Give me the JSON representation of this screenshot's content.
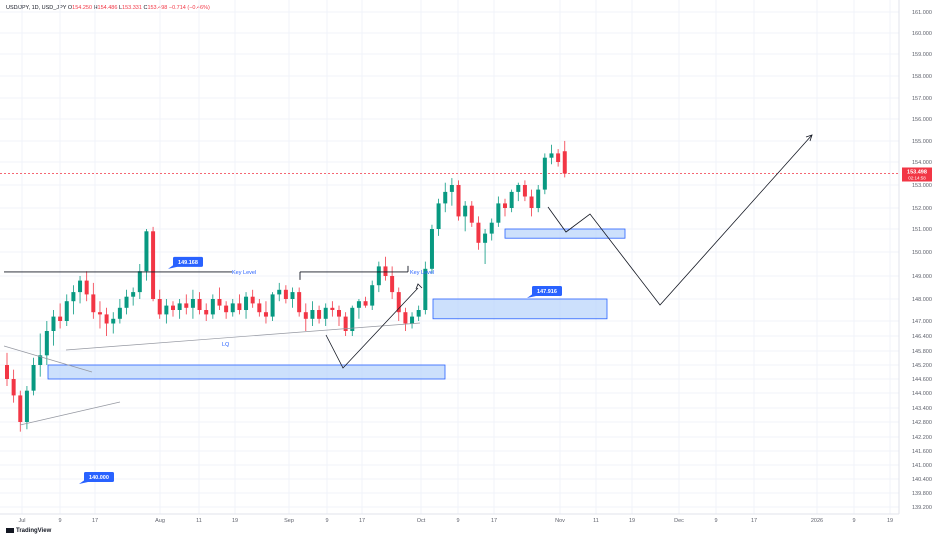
{
  "header": {
    "symbol": "USD/JPY, 1D, USD_JPY",
    "open_label": "O",
    "open": "154.250",
    "high_label": "H",
    "high": "154.486",
    "low_label": "L",
    "low": "153.331",
    "close_label": "C",
    "close": "153.498",
    "change": "−0.714 (−0.46%)"
  },
  "watermark": "TradingView",
  "colors": {
    "up": "#089981",
    "down": "#f23645",
    "label_blue": "#2962ff",
    "zone_fill": "#bbd6fb",
    "zone_stroke": "#2962ff"
  },
  "chart_data": {
    "type": "candlestick",
    "title": "USD/JPY, 1D, USD_JPY",
    "ylim": [
      139.2,
      161.3
    ],
    "y_ticks": [
      "161.000",
      "160.000",
      "159.000",
      "158.000",
      "157.000",
      "156.000",
      "155.000",
      "154.000",
      "153.000",
      "152.000",
      "151.000",
      "150.000",
      "149.000",
      "148.000",
      "147.000",
      "146.400",
      "145.800",
      "145.200",
      "144.600",
      "144.000",
      "143.400",
      "142.800",
      "142.200",
      "141.600",
      "141.000",
      "140.400",
      "139.800",
      "139.200"
    ],
    "x_ticks": [
      "Jul",
      "9",
      "17",
      "Aug",
      "11",
      "19",
      "Sep",
      "9",
      "17",
      "Oct",
      "9",
      "17",
      "Nov",
      "11",
      "19",
      "Dec",
      "9",
      "17",
      "2026",
      "9",
      "19"
    ],
    "last_price": "153.498",
    "countdown": "02:14:58",
    "candles": [
      [
        145.2,
        145.7,
        144.3,
        144.6
      ],
      [
        144.6,
        145.0,
        143.6,
        143.9
      ],
      [
        143.9,
        144.1,
        142.4,
        142.8
      ],
      [
        142.8,
        144.3,
        142.5,
        144.1
      ],
      [
        144.1,
        145.5,
        143.9,
        145.2
      ],
      [
        145.2,
        146.5,
        144.7,
        145.6
      ],
      [
        145.6,
        147.0,
        145.2,
        146.6
      ],
      [
        146.6,
        147.5,
        146.0,
        147.2
      ],
      [
        147.2,
        147.8,
        146.7,
        147.0
      ],
      [
        147.0,
        148.2,
        146.8,
        147.9
      ],
      [
        147.9,
        148.6,
        147.3,
        148.3
      ],
      [
        148.3,
        149.0,
        147.8,
        148.8
      ],
      [
        148.8,
        149.2,
        147.9,
        148.2
      ],
      [
        148.2,
        148.7,
        147.1,
        147.4
      ],
      [
        147.4,
        147.9,
        146.7,
        147.3
      ],
      [
        147.3,
        147.6,
        146.4,
        146.9
      ],
      [
        146.9,
        147.4,
        146.5,
        147.1
      ],
      [
        147.1,
        148.0,
        146.9,
        147.6
      ],
      [
        147.6,
        148.4,
        147.3,
        148.1
      ],
      [
        148.1,
        148.5,
        147.7,
        148.3
      ],
      [
        148.3,
        149.5,
        148.0,
        149.2
      ],
      [
        149.2,
        151.0,
        148.8,
        150.9
      ],
      [
        150.9,
        151.1,
        147.9,
        148.0
      ],
      [
        148.0,
        148.4,
        147.1,
        147.3
      ],
      [
        147.3,
        148.0,
        146.9,
        147.7
      ],
      [
        147.7,
        147.9,
        147.2,
        147.5
      ],
      [
        147.5,
        148.0,
        147.1,
        147.8
      ],
      [
        147.8,
        148.2,
        147.3,
        147.6
      ],
      [
        147.6,
        148.4,
        147.1,
        148.0
      ],
      [
        148.0,
        148.3,
        147.3,
        147.5
      ],
      [
        147.5,
        147.8,
        147.0,
        147.3
      ],
      [
        147.3,
        148.2,
        147.1,
        148.0
      ],
      [
        148.0,
        148.5,
        147.5,
        147.7
      ],
      [
        147.7,
        147.9,
        147.1,
        147.4
      ],
      [
        147.4,
        148.0,
        147.2,
        147.8
      ],
      [
        147.8,
        148.2,
        147.3,
        147.5
      ],
      [
        147.5,
        148.3,
        147.1,
        148.1
      ],
      [
        148.1,
        148.4,
        147.6,
        147.8
      ],
      [
        147.8,
        148.0,
        147.2,
        147.4
      ],
      [
        147.4,
        147.9,
        146.9,
        147.2
      ],
      [
        147.2,
        148.3,
        147.0,
        148.2
      ],
      [
        148.2,
        148.7,
        147.9,
        148.4
      ],
      [
        148.4,
        148.6,
        147.8,
        148.0
      ],
      [
        148.0,
        148.5,
        147.6,
        148.3
      ],
      [
        148.3,
        148.5,
        147.2,
        147.4
      ],
      [
        147.4,
        147.8,
        146.6,
        147.1
      ],
      [
        147.1,
        147.9,
        146.8,
        147.5
      ],
      [
        147.5,
        147.7,
        146.9,
        147.1
      ],
      [
        147.1,
        147.8,
        146.8,
        147.6
      ],
      [
        147.6,
        147.9,
        147.2,
        147.5
      ],
      [
        147.5,
        147.7,
        146.8,
        147.2
      ],
      [
        147.2,
        147.4,
        146.4,
        146.6
      ],
      [
        146.6,
        147.7,
        146.4,
        147.6
      ],
      [
        147.6,
        148.0,
        147.1,
        147.9
      ],
      [
        147.9,
        148.1,
        147.6,
        147.7
      ],
      [
        147.7,
        148.8,
        147.5,
        148.6
      ],
      [
        148.6,
        149.6,
        148.3,
        149.4
      ],
      [
        149.4,
        149.8,
        148.8,
        149.0
      ],
      [
        149.0,
        149.4,
        148.0,
        148.3
      ],
      [
        148.3,
        148.5,
        147.0,
        147.4
      ],
      [
        147.4,
        147.6,
        146.6,
        146.9
      ],
      [
        146.9,
        147.4,
        146.7,
        147.2
      ],
      [
        147.2,
        147.7,
        147.0,
        147.5
      ],
      [
        147.5,
        149.6,
        147.3,
        149.3
      ],
      [
        149.3,
        151.2,
        149.1,
        151.0
      ],
      [
        151.0,
        152.4,
        150.7,
        152.2
      ],
      [
        152.2,
        153.1,
        151.8,
        152.7
      ],
      [
        152.7,
        153.3,
        152.1,
        153.0
      ],
      [
        153.0,
        153.2,
        151.4,
        151.6
      ],
      [
        151.6,
        152.3,
        150.9,
        152.1
      ],
      [
        152.1,
        152.3,
        151.1,
        151.3
      ],
      [
        151.3,
        151.6,
        150.1,
        150.4
      ],
      [
        150.4,
        151.0,
        149.5,
        150.8
      ],
      [
        150.8,
        151.5,
        150.5,
        151.3
      ],
      [
        151.3,
        152.5,
        151.1,
        152.2
      ],
      [
        152.2,
        152.4,
        151.6,
        152.0
      ],
      [
        152.0,
        152.8,
        151.8,
        152.7
      ],
      [
        152.7,
        153.1,
        152.3,
        153.0
      ],
      [
        153.0,
        153.2,
        152.3,
        152.5
      ],
      [
        152.5,
        152.8,
        151.6,
        152.0
      ],
      [
        152.0,
        153.0,
        151.8,
        152.8
      ],
      [
        152.8,
        154.2,
        152.6,
        154.1
      ],
      [
        154.1,
        154.4,
        153.9,
        154.2
      ],
      [
        154.2,
        154.3,
        153.8,
        154.0
      ],
      [
        154.25,
        154.49,
        153.33,
        153.5
      ]
    ],
    "annotations": {
      "price_labels": [
        "149.168",
        "147.916",
        "140.000"
      ],
      "text": [
        "Key Level",
        "Key Level",
        "LQ"
      ]
    }
  }
}
